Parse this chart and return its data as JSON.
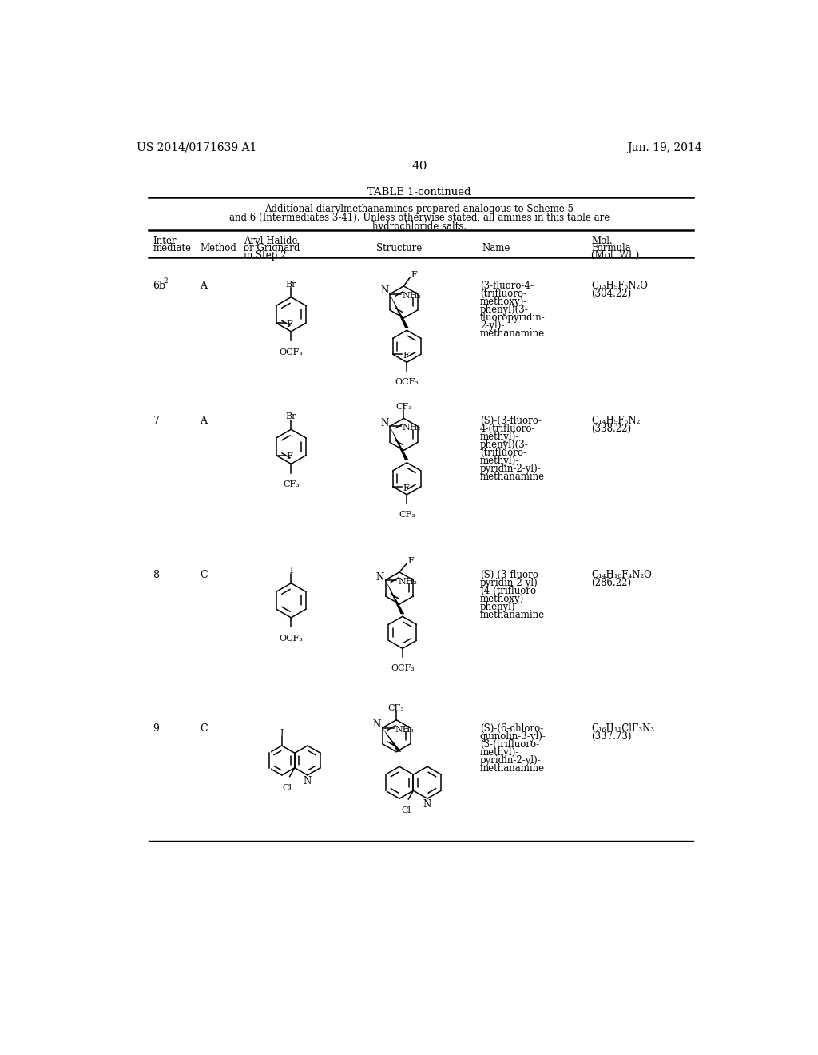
{
  "page_header_left": "US 2014/0171639 A1",
  "page_header_right": "Jun. 19, 2014",
  "page_number": "40",
  "table_title": "TABLE 1-continued",
  "table_caption_line1": "Additional diarylmethanamines prepared analogous to Scheme 5",
  "table_caption_line2": "and 6 (Intermediates 3-41). Unless otherwise stated, all amines in this table are",
  "table_caption_line3": "hydrochloride salts.",
  "bg_color": "#ffffff",
  "text_color": "#000000",
  "rows": [
    {
      "intermediate": "6b",
      "superscript": "2",
      "method": "A",
      "aryl_label_top": "Br",
      "aryl_label_side": "F",
      "aryl_label_bottom": "OCF₃",
      "product_label_top": "F",
      "product_label_nh2": "NH₂",
      "product_label_bottom": "OCF₃",
      "product_label_f2": "F",
      "name_lines": [
        "(3-fluoro-4-",
        "(trifluoro-",
        "methoxy)-",
        "phenyl)(3-",
        "fluoropyridin-",
        "2-yl)-",
        "methanamine"
      ],
      "mol_formula": "C₁₃H₉F₅N₂O",
      "mol_wt": "(304.22)"
    },
    {
      "intermediate": "7",
      "superscript": "",
      "method": "A",
      "aryl_label_top": "Br",
      "aryl_label_side": "F",
      "aryl_label_bottom": "CF₃",
      "product_label_top": "CF₃",
      "product_label_nh2": "NH₂",
      "product_label_bottom": "CF₃",
      "product_label_f2": "F",
      "name_lines": [
        "(S)-(3-fluoro-",
        "4-(trifluoro-",
        "methyl)-",
        "phenyl)(3-",
        "(trifluoro-",
        "methyl)-",
        "pyridin-2-yl)-",
        "methanamine"
      ],
      "mol_formula": "C₁₄H₉F₆N₂",
      "mol_wt": "(338.22)"
    },
    {
      "intermediate": "8",
      "superscript": "",
      "method": "C",
      "aryl_label_top": "I",
      "aryl_label_side": "",
      "aryl_label_bottom": "OCF₃",
      "product_label_top": "F",
      "product_label_nh2": "NH₂",
      "product_label_bottom": "OCF₃",
      "product_label_f2": "",
      "name_lines": [
        "(S)-(3-fluoro-",
        "pyridin-2-yl)-",
        "(4-(trifluoro-",
        "methoxy)-",
        "phenyl)-",
        "methanamine"
      ],
      "mol_formula": "C₁₄H₁₀F₄N₂O",
      "mol_wt": "(286.22)"
    },
    {
      "intermediate": "9",
      "superscript": "",
      "method": "C",
      "aryl_label_top": "I",
      "aryl_label_side": "N",
      "aryl_label_bottom": "Cl",
      "product_label_top": "CF₃",
      "product_label_nh2": "NH₂",
      "product_label_bottom": "Cl",
      "product_label_f2": "N",
      "name_lines": [
        "(S)-(6-chloro-",
        "quinolin-3-yl)-",
        "(3-(trifluoro-",
        "methyl)-",
        "pyridin-2-yl)-",
        "methanamine"
      ],
      "mol_formula": "C₁₆H₁₁ClF₃N₃",
      "mol_wt": "(337.73)"
    }
  ]
}
